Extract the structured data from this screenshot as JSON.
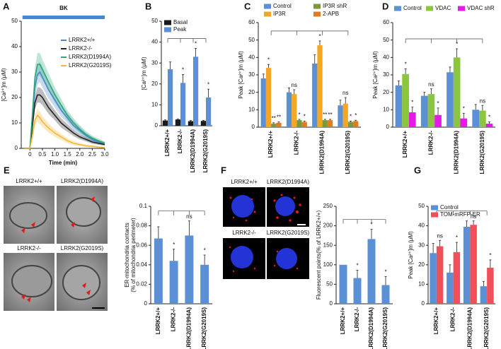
{
  "chart_data": [
    {
      "panel": "A",
      "type": "line",
      "xlabel": "Time (min)",
      "ylabel": "[Ca²⁺]m (μM)",
      "stimulus": {
        "label": "BK",
        "x": [
          -0.3,
          3.0
        ],
        "color": "#4a86c8"
      },
      "x": [
        -0.25,
        0,
        0.1,
        0.2,
        0.3,
        0.4,
        0.5,
        0.75,
        1.0,
        1.25,
        1.5,
        1.75,
        2.0,
        2.25,
        2.5,
        2.75,
        3.0
      ],
      "xlim": [
        -0.35,
        3.0
      ],
      "xticks": [
        0,
        0.5,
        {
          "value": 1,
          "label": "1.0"
        },
        1.5,
        {
          "value": 2,
          "label": "2.0"
        },
        2.5,
        {
          "value": 3,
          "label": "3.0"
        }
      ],
      "ylim": [
        0,
        50
      ],
      "yticks": [
        0,
        10,
        20,
        30,
        40,
        50
      ],
      "legend": "upper right",
      "series": [
        {
          "name": "LRRK2+/+",
          "color": "#4a86c8",
          "values": [
            0,
            0,
            12,
            24,
            29,
            30,
            28,
            23,
            19,
            15,
            12,
            9,
            7,
            5,
            3.5,
            2.5,
            2
          ],
          "errors": [
            0.3,
            0.3,
            2,
            3.5,
            4,
            4,
            4,
            3.5,
            3,
            2.5,
            2,
            1.8,
            1.5,
            1.2,
            1,
            0.8,
            0.6
          ]
        },
        {
          "name": "LRRK2-/-",
          "color": "#222222",
          "values": [
            0,
            0,
            9,
            18,
            21,
            21,
            20,
            16,
            13,
            10,
            8,
            6,
            4.5,
            3.5,
            2.5,
            2,
            1.5
          ],
          "errors": [
            0.3,
            0.3,
            1.5,
            2.5,
            3,
            3,
            3,
            2.5,
            2,
            1.8,
            1.5,
            1.2,
            1,
            0.8,
            0.7,
            0.6,
            0.5
          ]
        },
        {
          "name": "LRRK2(D1994A)",
          "color": "#2aa876",
          "values": [
            0,
            0,
            14,
            28,
            33,
            33,
            31,
            26,
            21,
            17,
            13,
            10,
            7.5,
            5.5,
            4,
            3,
            2
          ],
          "errors": [
            0.3,
            0.3,
            2,
            3.5,
            4.5,
            4.5,
            4,
            3.5,
            3,
            2.5,
            2,
            1.8,
            1.5,
            1.2,
            1,
            0.8,
            0.6
          ]
        },
        {
          "name": "LRRK2(G2019S)",
          "color": "#f5b73b",
          "values": [
            0,
            0,
            5,
            11,
            13,
            12,
            10.5,
            8,
            6,
            4.5,
            3,
            2,
            1.5,
            1,
            0.8,
            0.5,
            0.3
          ],
          "errors": [
            0.2,
            0.2,
            1,
            2,
            2.5,
            2.5,
            2.2,
            1.8,
            1.5,
            1.2,
            1,
            0.8,
            0.6,
            0.5,
            0.4,
            0.3,
            0.2
          ]
        }
      ]
    },
    {
      "panel": "B",
      "type": "bar",
      "ylabel": "[Ca²⁺]m (μM)",
      "ylim": [
        0,
        50
      ],
      "yticks": [
        0,
        10,
        20,
        30,
        40,
        50
      ],
      "legend": "upper left",
      "categories": [
        "LRRK2+/+",
        "LRRK2-/-",
        "LRRK2(D1994A)",
        "LRRK2(G2019S)"
      ],
      "series": [
        {
          "name": "Basal",
          "color": "#1a1a1a",
          "values": [
            2.5,
            3,
            2.2,
            2.3
          ],
          "errors": [
            0.3,
            0.3,
            0.3,
            0.3
          ]
        },
        {
          "name": "Peak",
          "color": "#5b8fd6",
          "values": [
            27,
            20.5,
            33,
            13.5
          ],
          "errors": [
            3.5,
            4,
            4,
            4
          ]
        }
      ],
      "annotations": [
        {
          "text": "*",
          "series": 1,
          "category": 1
        },
        {
          "text": "*",
          "series": 1,
          "category": 2
        },
        {
          "text": "*",
          "series": 1,
          "category": 3
        }
      ]
    },
    {
      "panel": "C",
      "type": "bar",
      "ylabel": "Peak [Ca²⁺]m (μM)",
      "ylim": [
        0,
        60
      ],
      "yticks": [
        0,
        10,
        20,
        30,
        40,
        50,
        60
      ],
      "legend": "top",
      "categories": [
        "LRRK2+/+",
        "LRRK2-/-",
        "LRRK2(D1994A)",
        "LRRK2(G2019S)"
      ],
      "series": [
        {
          "name": "Control",
          "color": "#5b8fd6",
          "values": [
            28,
            20,
            36.5,
            12.5
          ],
          "errors": [
            2.5,
            2.5,
            5,
            3
          ]
        },
        {
          "name": "IP3R",
          "color": "#f5a623",
          "values": [
            34,
            19,
            47,
            13.5
          ],
          "errors": [
            2,
            2.5,
            2.5,
            3.5
          ]
        },
        {
          "name": "IP3R shR",
          "color": "#7a9a3a",
          "values": [
            2,
            4,
            4,
            3
          ],
          "errors": [
            0.5,
            0.5,
            0.5,
            0.5
          ]
        },
        {
          "name": "2-APB",
          "color": "#e07b1f",
          "values": [
            2.5,
            3,
            4,
            3.5
          ],
          "errors": [
            0.5,
            0.5,
            0.5,
            0.5
          ]
        }
      ],
      "annotations": [
        {
          "text": "*",
          "series": 1,
          "category": 0
        },
        {
          "text": "**",
          "series": 2,
          "category": 0
        },
        {
          "text": "**",
          "series": 3,
          "category": 0
        },
        {
          "text": "ns",
          "series": 1,
          "category": 1
        },
        {
          "text": "*",
          "series": 2,
          "category": 1
        },
        {
          "text": "*",
          "series": 3,
          "category": 1
        },
        {
          "text": "*",
          "series": 1,
          "category": 2
        },
        {
          "text": "**",
          "series": 2,
          "category": 2
        },
        {
          "text": "**",
          "series": 3,
          "category": 2
        },
        {
          "text": "ns",
          "series": 1,
          "category": 3
        },
        {
          "text": "*",
          "series": 2,
          "category": 3
        },
        {
          "text": "*",
          "series": 3,
          "category": 3
        }
      ]
    },
    {
      "panel": "D",
      "type": "bar",
      "ylabel": "Peak [Ca²⁺]m (μM)",
      "ylim": [
        0,
        60
      ],
      "yticks": [
        0,
        10,
        20,
        30,
        40,
        50,
        60
      ],
      "legend": "top",
      "categories": [
        "LRRK2+/+",
        "LRRK2-/-",
        "LRRK2(D1994A)",
        "LRRK2(G2019S)"
      ],
      "series": [
        {
          "name": "Control",
          "color": "#5b8fd6",
          "values": [
            24,
            18,
            31.5,
            10
          ],
          "errors": [
            2.5,
            2,
            3,
            3
          ]
        },
        {
          "name": "VDAC",
          "color": "#8cc63f",
          "values": [
            30.5,
            19,
            40,
            9.5
          ],
          "errors": [
            3,
            3,
            5,
            3
          ]
        },
        {
          "name": "VDAC shR",
          "color": "#e619e6",
          "values": [
            8.5,
            7,
            5,
            2
          ],
          "errors": [
            3,
            4,
            3,
            1
          ]
        }
      ],
      "annotations": [
        {
          "text": "*",
          "series": 1,
          "category": 0
        },
        {
          "text": "*",
          "series": 2,
          "category": 0
        },
        {
          "text": "ns",
          "series": 1,
          "category": 1
        },
        {
          "text": "*",
          "series": 2,
          "category": 1
        },
        {
          "text": "*",
          "series": 1,
          "category": 2
        },
        {
          "text": "*",
          "series": 2,
          "category": 2
        },
        {
          "text": "ns",
          "series": 1,
          "category": 3
        },
        {
          "text": "*",
          "series": 2,
          "category": 3
        }
      ]
    },
    {
      "panel": "E",
      "type": "bar",
      "ylabel": [
        "ER-mitochondria contacts",
        "(% of mitochondria perimeter)"
      ],
      "image_labels": [
        "LRRK2+/+",
        "LRRK2(D1994A)",
        "LRRK2-/-",
        "LRRK2(G2019S)"
      ],
      "ylim": [
        0,
        0.1
      ],
      "yticks": [
        0,
        0.02,
        0.04,
        0.06,
        0.08,
        0.1
      ],
      "categories": [
        "LRRK2+/+",
        "LRRK2-/-",
        "LRRK2(D1994A)",
        "LRRK2(G2019S)"
      ],
      "series": [
        {
          "color": "#5b8fd6",
          "values": [
            0.067,
            0.044,
            0.07,
            0.04
          ],
          "errors": [
            0.012,
            0.012,
            0.015,
            0.01
          ]
        }
      ],
      "annotations": [
        {
          "text": "*",
          "series": 0,
          "category": 1
        },
        {
          "text": "ns",
          "series": 0,
          "category": 2
        },
        {
          "text": "*",
          "series": 0,
          "category": 3
        }
      ]
    },
    {
      "panel": "F",
      "type": "bar",
      "ylabel": "Fluorescent points(% of LRRK2+/+)",
      "image_labels": [
        "LRRK2+/+",
        "LRRK2(D1994A)",
        "LRRK2-/-",
        "LRRK2(G2019S)"
      ],
      "ylim": [
        0,
        250
      ],
      "yticks": [
        0,
        50,
        100,
        150,
        200,
        250
      ],
      "categories": [
        "LRRK2+/+",
        "LRRK2-/-",
        "LRRK2(D1994A)",
        "LRRK2(G2019S)"
      ],
      "series": [
        {
          "color": "#5b8fd6",
          "values": [
            100,
            66,
            166,
            48
          ],
          "errors": [
            0,
            20,
            25,
            22
          ]
        }
      ],
      "annotations": [
        {
          "text": "*",
          "series": 0,
          "category": 1
        },
        {
          "text": "*",
          "series": 0,
          "category": 2
        },
        {
          "text": "*",
          "series": 0,
          "category": 3
        }
      ]
    },
    {
      "panel": "G",
      "type": "bar",
      "ylabel": "Peak [Ca²⁺]m (μM)",
      "ylim": [
        0,
        50
      ],
      "yticks": [
        0,
        10,
        20,
        30,
        40,
        50
      ],
      "legend": "upper left",
      "categories": [
        "LRRK2+/+",
        "LRRK2-/-",
        "LRRK2(D1994A)",
        "LRRK2(G2019S)"
      ],
      "series": [
        {
          "name": "Control",
          "color": "#5b8fd6",
          "values": [
            26,
            16,
            39.5,
            9
          ],
          "errors": [
            5,
            4,
            3,
            2.5
          ]
        },
        {
          "name": "TOM-mRFP-ER",
          "color": "#f0505a",
          "values": [
            29.5,
            26.5,
            40.5,
            18.5
          ],
          "errors": [
            3,
            5,
            2,
            4
          ]
        }
      ],
      "annotations": [
        {
          "text": "ns",
          "series": 1,
          "category": 0
        },
        {
          "text": "*",
          "series": 1,
          "category": 1
        },
        {
          "text": "ns",
          "series": 1,
          "category": 2
        },
        {
          "text": "*",
          "series": 1,
          "category": 3
        }
      ]
    }
  ]
}
